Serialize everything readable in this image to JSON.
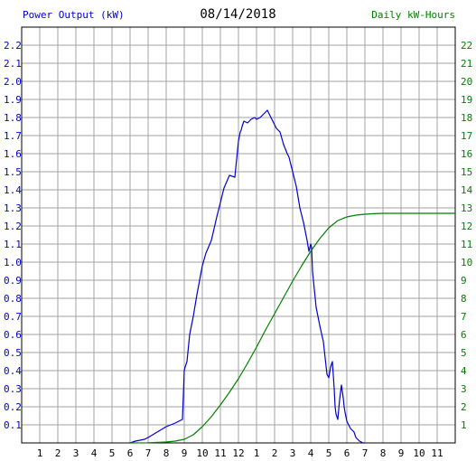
{
  "header": {
    "left_label": "Power Output (kW)",
    "date": "08/14/2018",
    "right_label": "Daily kW-Hours"
  },
  "colors": {
    "power_series": "#0000cc",
    "energy_series": "#008000",
    "grid": "#a0a0a0",
    "axis_text": "#000000"
  },
  "chart_data": {
    "type": "line",
    "title": "08/14/2018",
    "grid": true,
    "x_tick_labels": [
      "1",
      "2",
      "3",
      "4",
      "5",
      "6",
      "7",
      "8",
      "9",
      "10",
      "11",
      "12",
      "1",
      "2",
      "3",
      "4",
      "5",
      "6",
      "7",
      "8",
      "9",
      "10",
      "11"
    ],
    "xlim": [
      0,
      24
    ],
    "y_left": {
      "label": "Power Output (kW)",
      "ylim": [
        0,
        2.3
      ],
      "ticks": [
        "0.1",
        "0.2",
        "0.3",
        "0.4",
        "0.5",
        "0.6",
        "0.7",
        "0.8",
        "0.9",
        "1.0",
        "1.1",
        "1.2",
        "1.3",
        "1.4",
        "1.5",
        "1.6",
        "1.7",
        "1.8",
        "1.9",
        "2.0",
        "2.1",
        "2.2"
      ]
    },
    "y_right": {
      "label": "Daily kW-Hours",
      "ylim": [
        0,
        23
      ],
      "ticks": [
        "1",
        "2",
        "3",
        "4",
        "5",
        "6",
        "7",
        "8",
        "9",
        "10",
        "11",
        "12",
        "13",
        "14",
        "15",
        "16",
        "17",
        "18",
        "19",
        "20",
        "21",
        "22"
      ]
    },
    "series": [
      {
        "name": "Power Output (kW)",
        "axis": "left",
        "x": [
          6.0,
          6.3,
          6.8,
          7.0,
          7.5,
          8.0,
          8.5,
          8.9,
          9.0,
          9.05,
          9.15,
          9.3,
          9.5,
          9.7,
          10.0,
          10.2,
          10.5,
          10.8,
          11.0,
          11.2,
          11.5,
          11.8,
          12.0,
          12.1,
          12.15,
          12.2,
          12.3,
          12.5,
          12.7,
          12.9,
          13.0,
          13.2,
          13.4,
          13.6,
          13.8,
          14.0,
          14.1,
          14.2,
          14.3,
          14.5,
          14.7,
          14.8,
          15.0,
          15.2,
          15.4,
          15.6,
          15.8,
          15.9,
          16.0,
          16.05,
          16.1,
          16.2,
          16.3,
          16.5,
          16.7,
          16.9,
          17.0,
          17.1,
          17.2,
          17.3,
          17.35,
          17.4,
          17.5,
          17.6,
          17.7,
          17.8,
          17.85,
          17.9,
          18.0,
          18.2,
          18.4,
          18.5,
          18.6,
          18.7,
          18.8,
          18.9,
          19.0
        ],
        "values": [
          0.0,
          0.01,
          0.02,
          0.03,
          0.06,
          0.09,
          0.11,
          0.13,
          0.4,
          0.42,
          0.45,
          0.6,
          0.7,
          0.82,
          0.98,
          1.05,
          1.12,
          1.25,
          1.33,
          1.41,
          1.48,
          1.47,
          1.67,
          1.72,
          1.73,
          1.75,
          1.78,
          1.77,
          1.79,
          1.8,
          1.79,
          1.8,
          1.82,
          1.84,
          1.8,
          1.76,
          1.74,
          1.73,
          1.72,
          1.65,
          1.6,
          1.58,
          1.5,
          1.42,
          1.3,
          1.22,
          1.12,
          1.06,
          1.1,
          1.08,
          0.95,
          0.85,
          0.75,
          0.65,
          0.56,
          0.38,
          0.36,
          0.42,
          0.45,
          0.3,
          0.2,
          0.16,
          0.13,
          0.24,
          0.32,
          0.25,
          0.2,
          0.17,
          0.12,
          0.08,
          0.06,
          0.03,
          0.02,
          0.01,
          0.005,
          0.0,
          0.0
        ]
      },
      {
        "name": "Daily kW-Hours",
        "axis": "right",
        "x": [
          6.0,
          7.0,
          8.0,
          8.5,
          9.0,
          9.5,
          10.0,
          10.5,
          11.0,
          11.5,
          12.0,
          12.5,
          13.0,
          13.5,
          14.0,
          14.5,
          15.0,
          15.5,
          16.0,
          16.5,
          17.0,
          17.5,
          18.0,
          18.5,
          19.0,
          19.5,
          20.0,
          20.5,
          21.0,
          22.0,
          23.0,
          24.0
        ],
        "values": [
          0.0,
          0.01,
          0.05,
          0.1,
          0.2,
          0.45,
          0.9,
          1.45,
          2.1,
          2.8,
          3.55,
          4.4,
          5.3,
          6.25,
          7.15,
          8.05,
          8.95,
          9.8,
          10.6,
          11.3,
          11.9,
          12.3,
          12.5,
          12.6,
          12.65,
          12.68,
          12.7,
          12.7,
          12.7,
          12.7,
          12.7,
          12.7
        ]
      }
    ]
  }
}
